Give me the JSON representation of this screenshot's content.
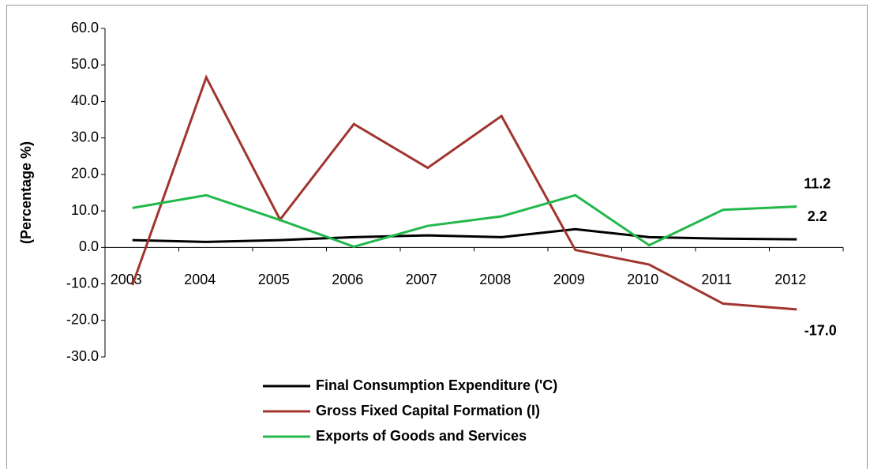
{
  "chart_data": {
    "type": "line",
    "y_label": "(Percentage %)",
    "categories": [
      "2003",
      "2004",
      "2005",
      "2006",
      "2007",
      "2008",
      "2009",
      "2010",
      "2011",
      "2012"
    ],
    "series": [
      {
        "name": "Final Consumption Expenditure ('C)",
        "color": "#000000",
        "values": [
          2.0,
          1.5,
          2.0,
          2.8,
          3.3,
          2.8,
          5.0,
          2.8,
          2.4,
          2.2
        ],
        "value_labels": [
          null,
          null,
          null,
          null,
          null,
          null,
          null,
          null,
          null,
          "2.2"
        ]
      },
      {
        "name": "Gross Fixed Capital Formation (I)",
        "color": "#a0352f",
        "values": [
          -10.3,
          46.6,
          7.6,
          33.8,
          21.8,
          36.0,
          -0.7,
          -4.7,
          -15.4,
          -17.0
        ],
        "value_labels": [
          null,
          null,
          null,
          null,
          null,
          null,
          null,
          null,
          null,
          "-17.0"
        ]
      },
      {
        "name": "Exports of Goods and Services",
        "color": "#22b84c",
        "values": [
          10.8,
          14.3,
          7.5,
          0.2,
          5.9,
          8.5,
          14.3,
          0.6,
          10.3,
          11.2
        ],
        "value_labels": [
          null,
          null,
          null,
          null,
          null,
          null,
          null,
          null,
          null,
          "11.2"
        ]
      }
    ],
    "ylim": [
      -30,
      60
    ],
    "yticks": [
      {
        "value": -30,
        "label": "-30.0"
      },
      {
        "value": -20,
        "label": "-20.0"
      },
      {
        "value": -10,
        "label": "-10.0"
      },
      {
        "value": 0,
        "label": "0.0"
      },
      {
        "value": 10,
        "label": "10.0"
      },
      {
        "value": 20,
        "label": "20.0"
      },
      {
        "value": 30,
        "label": "30.0"
      },
      {
        "value": 40,
        "label": "40.0"
      },
      {
        "value": 50,
        "label": "50.0"
      },
      {
        "value": 60,
        "label": "60.0"
      }
    ],
    "grid": false,
    "legend": "bottom"
  }
}
